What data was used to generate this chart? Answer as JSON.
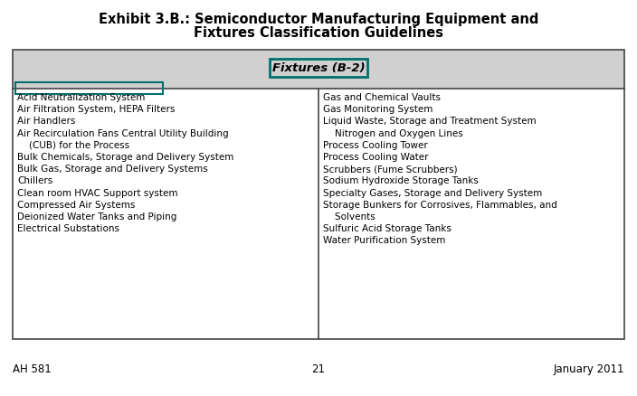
{
  "title_line1": "Exhibit 3.B.: Semiconductor Manufacturing Equipment and",
  "title_line2": "Fixtures Classification Guidelines",
  "header_text": "Fixtures (B-2)",
  "header_bg": "#d0d0d0",
  "header_border_color": "#007070",
  "highlight_item": "Acid Neutralization System",
  "highlight_border_color": "#007070",
  "left_items": [
    "Acid Neutralization System",
    "Air Filtration System, HEPA Filters",
    "Air Handlers",
    "Air Recirculation Fans Central Utility Building",
    "    (CUB) for the Process",
    "Bulk Chemicals, Storage and Delivery System",
    "Bulk Gas, Storage and Delivery Systems",
    "Chillers",
    "Clean room HVAC Support system",
    "Compressed Air Systems",
    "Deionized Water Tanks and Piping",
    "Electrical Substations"
  ],
  "right_items": [
    "Gas and Chemical Vaults",
    "Gas Monitoring System",
    "Liquid Waste, Storage and Treatment System",
    "    Nitrogen and Oxygen Lines",
    "Process Cooling Tower",
    "Process Cooling Water",
    "Scrubbers (Fume Scrubbers)",
    "Sodium Hydroxide Storage Tanks",
    "Specialty Gases, Storage and Delivery System",
    "Storage Bunkers for Corrosives, Flammables, and",
    "    Solvents",
    "Sulfuric Acid Storage Tanks",
    "Water Purification System"
  ],
  "footer_left": "AH 581",
  "footer_center": "21",
  "footer_right": "January 2011",
  "bg_color": "#ffffff",
  "text_color": "#000000",
  "table_border_color": "#444444",
  "font_size": 7.5,
  "title_font_size": 10.5
}
